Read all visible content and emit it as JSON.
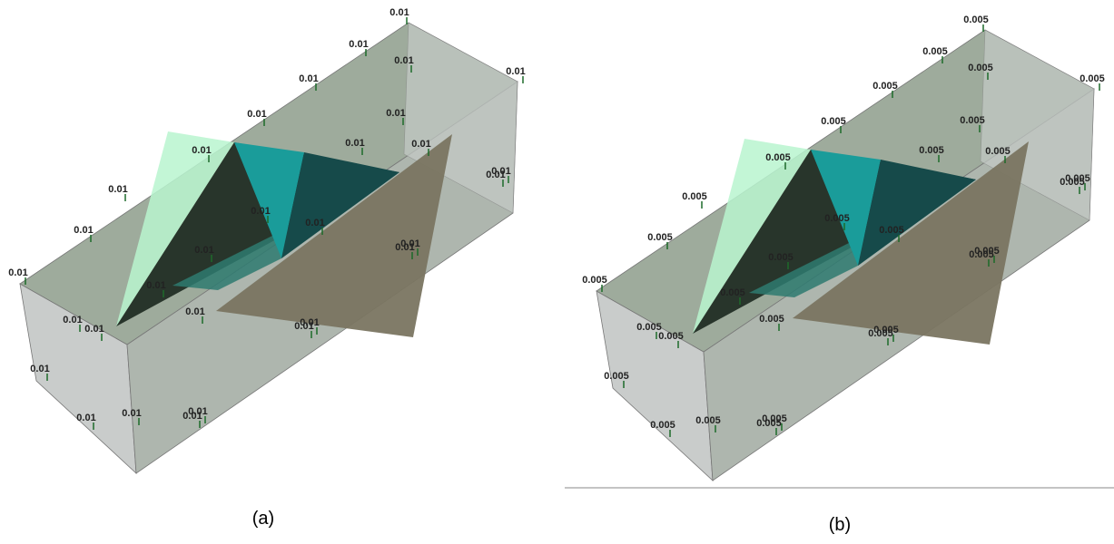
{
  "panels": [
    {
      "caption": "(a)",
      "labels": [
        "0.01",
        "0.01",
        "0.01",
        "0.01",
        "0.01",
        "0.01",
        "0.01",
        "0.01",
        "0.01",
        "0.01",
        "0.01",
        "0.01",
        "0.01",
        "0.01",
        "0.01",
        "0.01",
        "0.01",
        "0.01",
        "0.01",
        "0.01",
        "0.01",
        "0.01",
        "0.01",
        "0.01",
        "0.01",
        "0.01",
        "0.01",
        "0.01",
        "0.01",
        "0.01",
        "0.01"
      ]
    },
    {
      "caption": "(b)",
      "labels": [
        "0.005",
        "0.005",
        "0.005",
        "0.005",
        "0.005",
        "0.005",
        "0.005",
        "0.005",
        "0.005",
        "0.005",
        "0.005",
        "0.005",
        "0.005",
        "0.005",
        "0.005",
        "0.005",
        "0.005",
        "0.005",
        "0.005",
        "0.005",
        "0.005",
        "0.005",
        "0.005",
        "0.005",
        "0.005",
        "0.005",
        "0.005",
        "0.005",
        "0.005",
        "0.005",
        "0.005"
      ]
    }
  ]
}
